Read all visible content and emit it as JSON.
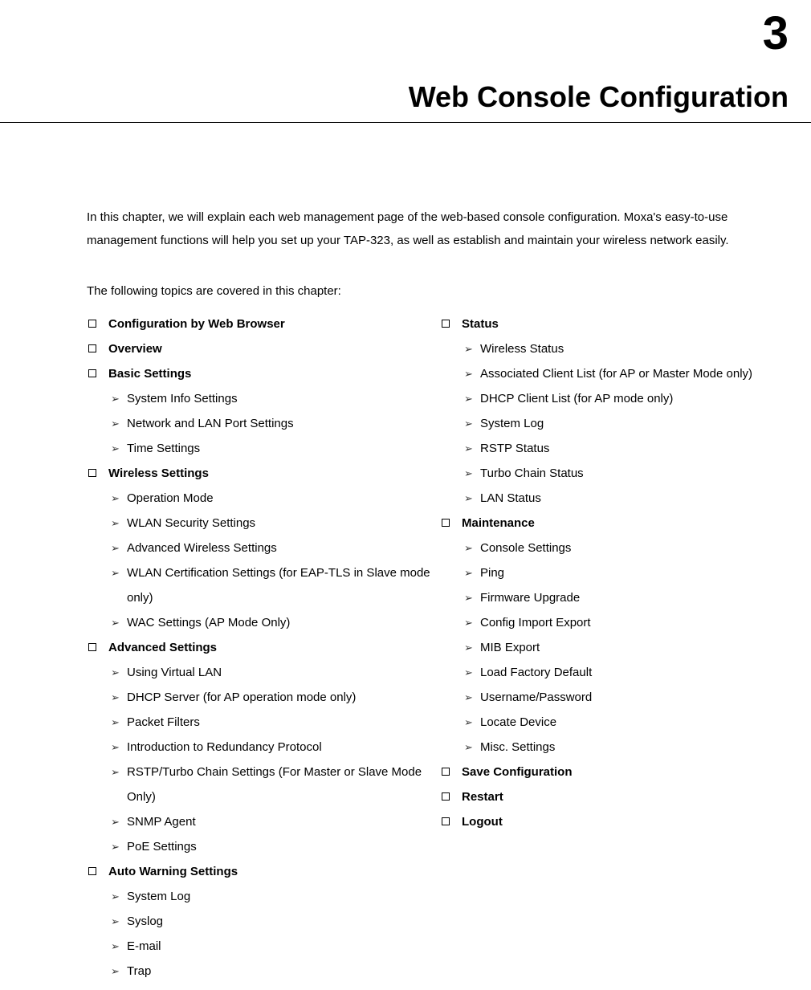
{
  "chapter_number": "3",
  "chapter_title": "Web Console Configuration",
  "intro": "In this chapter, we will explain each web management page of the web-based console configuration. Moxa's easy-to-use management functions will help you set up your TAP-323, as well as establish and maintain your wireless network easily.",
  "topics_intro": "The following topics are covered in this chapter:",
  "left_column": [
    {
      "type": "section",
      "label": "Configuration by Web Browser"
    },
    {
      "type": "section",
      "label": "Overview"
    },
    {
      "type": "section",
      "label": "Basic Settings"
    },
    {
      "type": "sub",
      "label": "System Info Settings"
    },
    {
      "type": "sub",
      "label": "Network and LAN Port Settings"
    },
    {
      "type": "sub",
      "label": "Time Settings"
    },
    {
      "type": "section",
      "label": "Wireless Settings"
    },
    {
      "type": "sub",
      "label": "Operation Mode"
    },
    {
      "type": "sub",
      "label": "WLAN Security Settings"
    },
    {
      "type": "sub",
      "label": "Advanced Wireless Settings"
    },
    {
      "type": "sub",
      "label": "WLAN Certification Settings (for EAP-TLS in Slave mode only)"
    },
    {
      "type": "sub",
      "label": "WAC Settings (AP Mode Only)"
    },
    {
      "type": "section",
      "label": "Advanced Settings"
    },
    {
      "type": "sub",
      "label": "Using Virtual LAN"
    },
    {
      "type": "sub",
      "label": "DHCP Server (for AP operation mode only)"
    },
    {
      "type": "sub",
      "label": "Packet Filters"
    },
    {
      "type": "sub",
      "label": "Introduction to Redundancy Protocol"
    },
    {
      "type": "sub",
      "label": "RSTP/Turbo Chain Settings (For Master or Slave Mode Only)"
    },
    {
      "type": "sub",
      "label": "SNMP Agent"
    },
    {
      "type": "sub",
      "label": "PoE Settings"
    },
    {
      "type": "section",
      "label": "Auto Warning Settings"
    },
    {
      "type": "sub",
      "label": "System Log"
    },
    {
      "type": "sub",
      "label": "Syslog"
    },
    {
      "type": "sub",
      "label": "E-mail"
    },
    {
      "type": "sub",
      "label": "Trap"
    }
  ],
  "right_column": [
    {
      "type": "section",
      "label": "Status"
    },
    {
      "type": "sub",
      "label": "Wireless Status"
    },
    {
      "type": "sub",
      "label": "Associated Client List (for AP or Master Mode only)"
    },
    {
      "type": "sub",
      "label": "DHCP Client List (for AP mode only)"
    },
    {
      "type": "sub",
      "label": "System Log"
    },
    {
      "type": "sub",
      "label": "RSTP Status"
    },
    {
      "type": "sub",
      "label": "Turbo Chain Status"
    },
    {
      "type": "sub",
      "label": "LAN Status"
    },
    {
      "type": "section",
      "label": "Maintenance"
    },
    {
      "type": "sub",
      "label": "Console Settings"
    },
    {
      "type": "sub",
      "label": "Ping"
    },
    {
      "type": "sub",
      "label": "Firmware Upgrade"
    },
    {
      "type": "sub",
      "label": "Config Import Export"
    },
    {
      "type": "sub",
      "label": "MIB Export"
    },
    {
      "type": "sub",
      "label": "Load Factory Default"
    },
    {
      "type": "sub",
      "label": "Username/Password"
    },
    {
      "type": "sub",
      "label": "Locate Device"
    },
    {
      "type": "sub",
      "label": "Misc. Settings"
    },
    {
      "type": "section",
      "label": "Save Configuration"
    },
    {
      "type": "section",
      "label": "Restart"
    },
    {
      "type": "section",
      "label": "Logout"
    }
  ],
  "style": {
    "background_color": "#ffffff",
    "text_color": "#000000",
    "font_family": "Verdana, Geneva, sans-serif",
    "chapter_number_fontsize": 58,
    "chapter_title_fontsize": 36,
    "body_fontsize": 15,
    "line_height": 31
  }
}
